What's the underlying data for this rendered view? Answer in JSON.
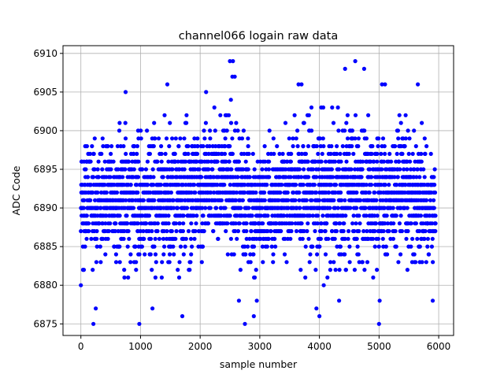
{
  "chart_data": {
    "type": "scatter",
    "title": "channel066 logain raw data",
    "xlabel": "sample number",
    "ylabel": "ADC Code",
    "xlim": [
      -300,
      6250
    ],
    "ylim": [
      6873.5,
      6911
    ],
    "xticks": [
      0,
      1000,
      2000,
      3000,
      4000,
      5000,
      6000
    ],
    "yticks": [
      6875,
      6880,
      6885,
      6890,
      6895,
      6900,
      6905,
      6910
    ],
    "grid": true,
    "marker_color": "#0000ff",
    "n_samples": 5950,
    "series": [
      {
        "values_description_points": [
          {
            "x": 0,
            "y": 6880
          },
          {
            "x": 210,
            "y": 6875
          },
          {
            "x": 250,
            "y": 6877
          },
          {
            "x": 980,
            "y": 6875
          },
          {
            "x": 1200,
            "y": 6877
          },
          {
            "x": 1700,
            "y": 6876
          },
          {
            "x": 2500,
            "y": 6909
          },
          {
            "x": 2550,
            "y": 6909
          },
          {
            "x": 2540,
            "y": 6907
          },
          {
            "x": 2580,
            "y": 6907
          },
          {
            "x": 2750,
            "y": 6875
          },
          {
            "x": 2650,
            "y": 6878
          },
          {
            "x": 2900,
            "y": 6876
          },
          {
            "x": 2950,
            "y": 6878
          },
          {
            "x": 3650,
            "y": 6906
          },
          {
            "x": 3700,
            "y": 6906
          },
          {
            "x": 3950,
            "y": 6877
          },
          {
            "x": 4000,
            "y": 6876
          },
          {
            "x": 4330,
            "y": 6878
          },
          {
            "x": 4430,
            "y": 6908
          },
          {
            "x": 4600,
            "y": 6909
          },
          {
            "x": 4750,
            "y": 6908
          },
          {
            "x": 5000,
            "y": 6875
          },
          {
            "x": 5010,
            "y": 6878
          },
          {
            "x": 5050,
            "y": 6906
          },
          {
            "x": 5100,
            "y": 6906
          },
          {
            "x": 5650,
            "y": 6906
          },
          {
            "x": 5900,
            "y": 6878
          },
          {
            "x": 1450,
            "y": 6906
          },
          {
            "x": 750,
            "y": 6905
          },
          {
            "x": 2100,
            "y": 6905
          }
        ],
        "band": [
          {
            "x": 0,
            "lo": 6882,
            "hi": 6899
          },
          {
            "x": 500,
            "lo": 6881,
            "hi": 6901
          },
          {
            "x": 1000,
            "lo": 6881,
            "hi": 6901
          },
          {
            "x": 1500,
            "lo": 6881,
            "hi": 6902
          },
          {
            "x": 2000,
            "lo": 6882,
            "hi": 6902
          },
          {
            "x": 2500,
            "lo": 6884,
            "hi": 6904
          },
          {
            "x": 2800,
            "lo": 6881,
            "hi": 6900
          },
          {
            "x": 3000,
            "lo": 6881,
            "hi": 6899
          },
          {
            "x": 3500,
            "lo": 6882,
            "hi": 6902
          },
          {
            "x": 4000,
            "lo": 6880,
            "hi": 6903
          },
          {
            "x": 4500,
            "lo": 6882,
            "hi": 6904
          },
          {
            "x": 5000,
            "lo": 6881,
            "hi": 6901
          },
          {
            "x": 5500,
            "lo": 6882,
            "hi": 6902
          },
          {
            "x": 5950,
            "lo": 6880,
            "hi": 6899
          }
        ]
      }
    ]
  }
}
